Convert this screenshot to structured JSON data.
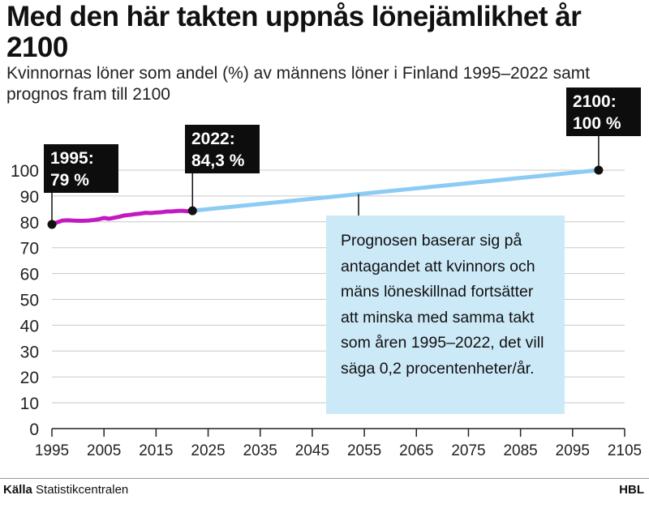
{
  "title": "Med den här takten uppnås lönejämlikhet år 2100",
  "subtitle": "Kvinnornas löner som andel (%) av männens löner i Finland 1995–2022 samt prognos fram till 2100",
  "source_label": "Källa",
  "source_text": "Statistikcentralen",
  "brand": "HBL",
  "note": "Prognosen baserar sig på antagandet att kvinnors och mäns löneskillnad fortsätter att minska med samma takt som åren 1995–2022, det vill säga 0,2 procentenheter/år.",
  "colors": {
    "actual": "#c419c1",
    "forecast": "#8ccbf3",
    "callout_bg": "#0d0d0d",
    "note_bg": "#cce9f8",
    "grid": "#c8c8c8"
  },
  "chart_data": {
    "type": "line",
    "xlim": [
      1995,
      2105
    ],
    "ylim": [
      0,
      100
    ],
    "x_ticks": [
      "1995",
      "2005",
      "2015",
      "2025",
      "2035",
      "2045",
      "2055",
      "2065",
      "2075",
      "2085",
      "2095",
      "2105"
    ],
    "y_ticks": [
      "0",
      "10",
      "20",
      "30",
      "40",
      "50",
      "60",
      "70",
      "80",
      "90",
      "100"
    ],
    "series": [
      {
        "x": [
          1995,
          1996,
          1997,
          1998,
          1999,
          2000,
          2001,
          2002,
          2003,
          2004,
          2005,
          2006,
          2007,
          2008,
          2009,
          2010,
          2011,
          2012,
          2013,
          2014,
          2015,
          2016,
          2017,
          2018,
          2019,
          2020,
          2021,
          2022
        ],
        "y": [
          79.0,
          79.8,
          80.5,
          80.6,
          80.5,
          80.4,
          80.4,
          80.5,
          80.7,
          81.0,
          81.5,
          81.2,
          81.6,
          82.0,
          82.5,
          82.7,
          83.0,
          83.2,
          83.5,
          83.4,
          83.6,
          83.7,
          84.0,
          84.0,
          84.2,
          84.3,
          84.1,
          84.3
        ]
      },
      {
        "x": [
          2022,
          2100
        ],
        "y": [
          84.3,
          100
        ]
      }
    ],
    "annotations": [
      {
        "line1": "1995:",
        "line2": "79 %",
        "x": 1995,
        "y": 79
      },
      {
        "line1": "2022:",
        "line2": "84,3 %",
        "x": 2022,
        "y": 84.3
      },
      {
        "line1": "2100:",
        "line2": "100 %",
        "x": 2100,
        "y": 100
      }
    ]
  }
}
